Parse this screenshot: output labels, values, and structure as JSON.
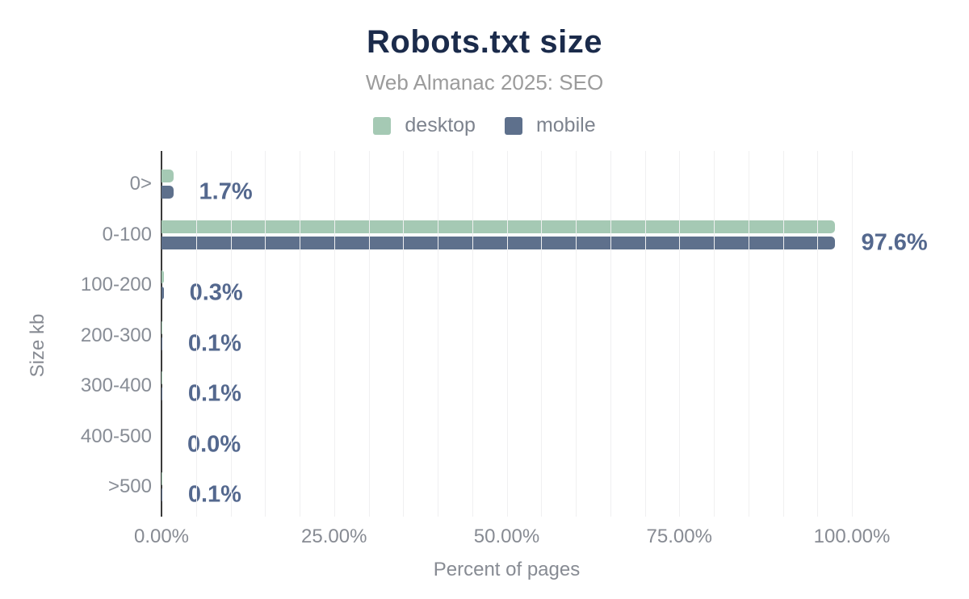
{
  "header": {
    "title": "Robots.txt size",
    "subtitle": "Web Almanac 2025: SEO"
  },
  "legend": [
    {
      "label": "desktop",
      "color": "#a5c9b4"
    },
    {
      "label": "mobile",
      "color": "#5e708c"
    }
  ],
  "chart_data": {
    "type": "bar",
    "orientation": "horizontal",
    "title": "Robots.txt size",
    "subtitle": "Web Almanac 2025: SEO",
    "xlabel": "Percent of pages",
    "ylabel": "Size kb",
    "categories": [
      "0>",
      "0-100",
      "100-200",
      "200-300",
      "300-400",
      "400-500",
      ">500"
    ],
    "series": [
      {
        "name": "desktop",
        "color": "#a5c9b4",
        "values": [
          1.7,
          97.6,
          0.3,
          0.1,
          0.1,
          0.0,
          0.1
        ]
      },
      {
        "name": "mobile",
        "color": "#5e708c",
        "values": [
          1.7,
          97.6,
          0.3,
          0.1,
          0.1,
          0.0,
          0.1
        ]
      }
    ],
    "value_labels": [
      "1.7%",
      "97.6%",
      "0.3%",
      "0.1%",
      "0.1%",
      "0.0%",
      "0.1%"
    ],
    "x_ticks": [
      {
        "label": "0.00%",
        "value": 0
      },
      {
        "label": "25.00%",
        "value": 25
      },
      {
        "label": "50.00%",
        "value": 50
      },
      {
        "label": "75.00%",
        "value": 75
      },
      {
        "label": "100.00%",
        "value": 100
      }
    ],
    "xlim": [
      0,
      100
    ],
    "grid": {
      "vertical_minor_step_pct": 5,
      "color": "#f0f0f1"
    },
    "legend_position": "top"
  },
  "colors": {
    "title": "#1b2b4b",
    "subtitle": "#9b9b9b",
    "axis_line": "#3b3b3b",
    "gridline": "#f0f0f1",
    "tick_text": "#878b93",
    "category_text": "#888d96",
    "value_label_text": "#54688e",
    "desktop_bar": "#a5c9b4",
    "mobile_bar": "#5e708c"
  }
}
